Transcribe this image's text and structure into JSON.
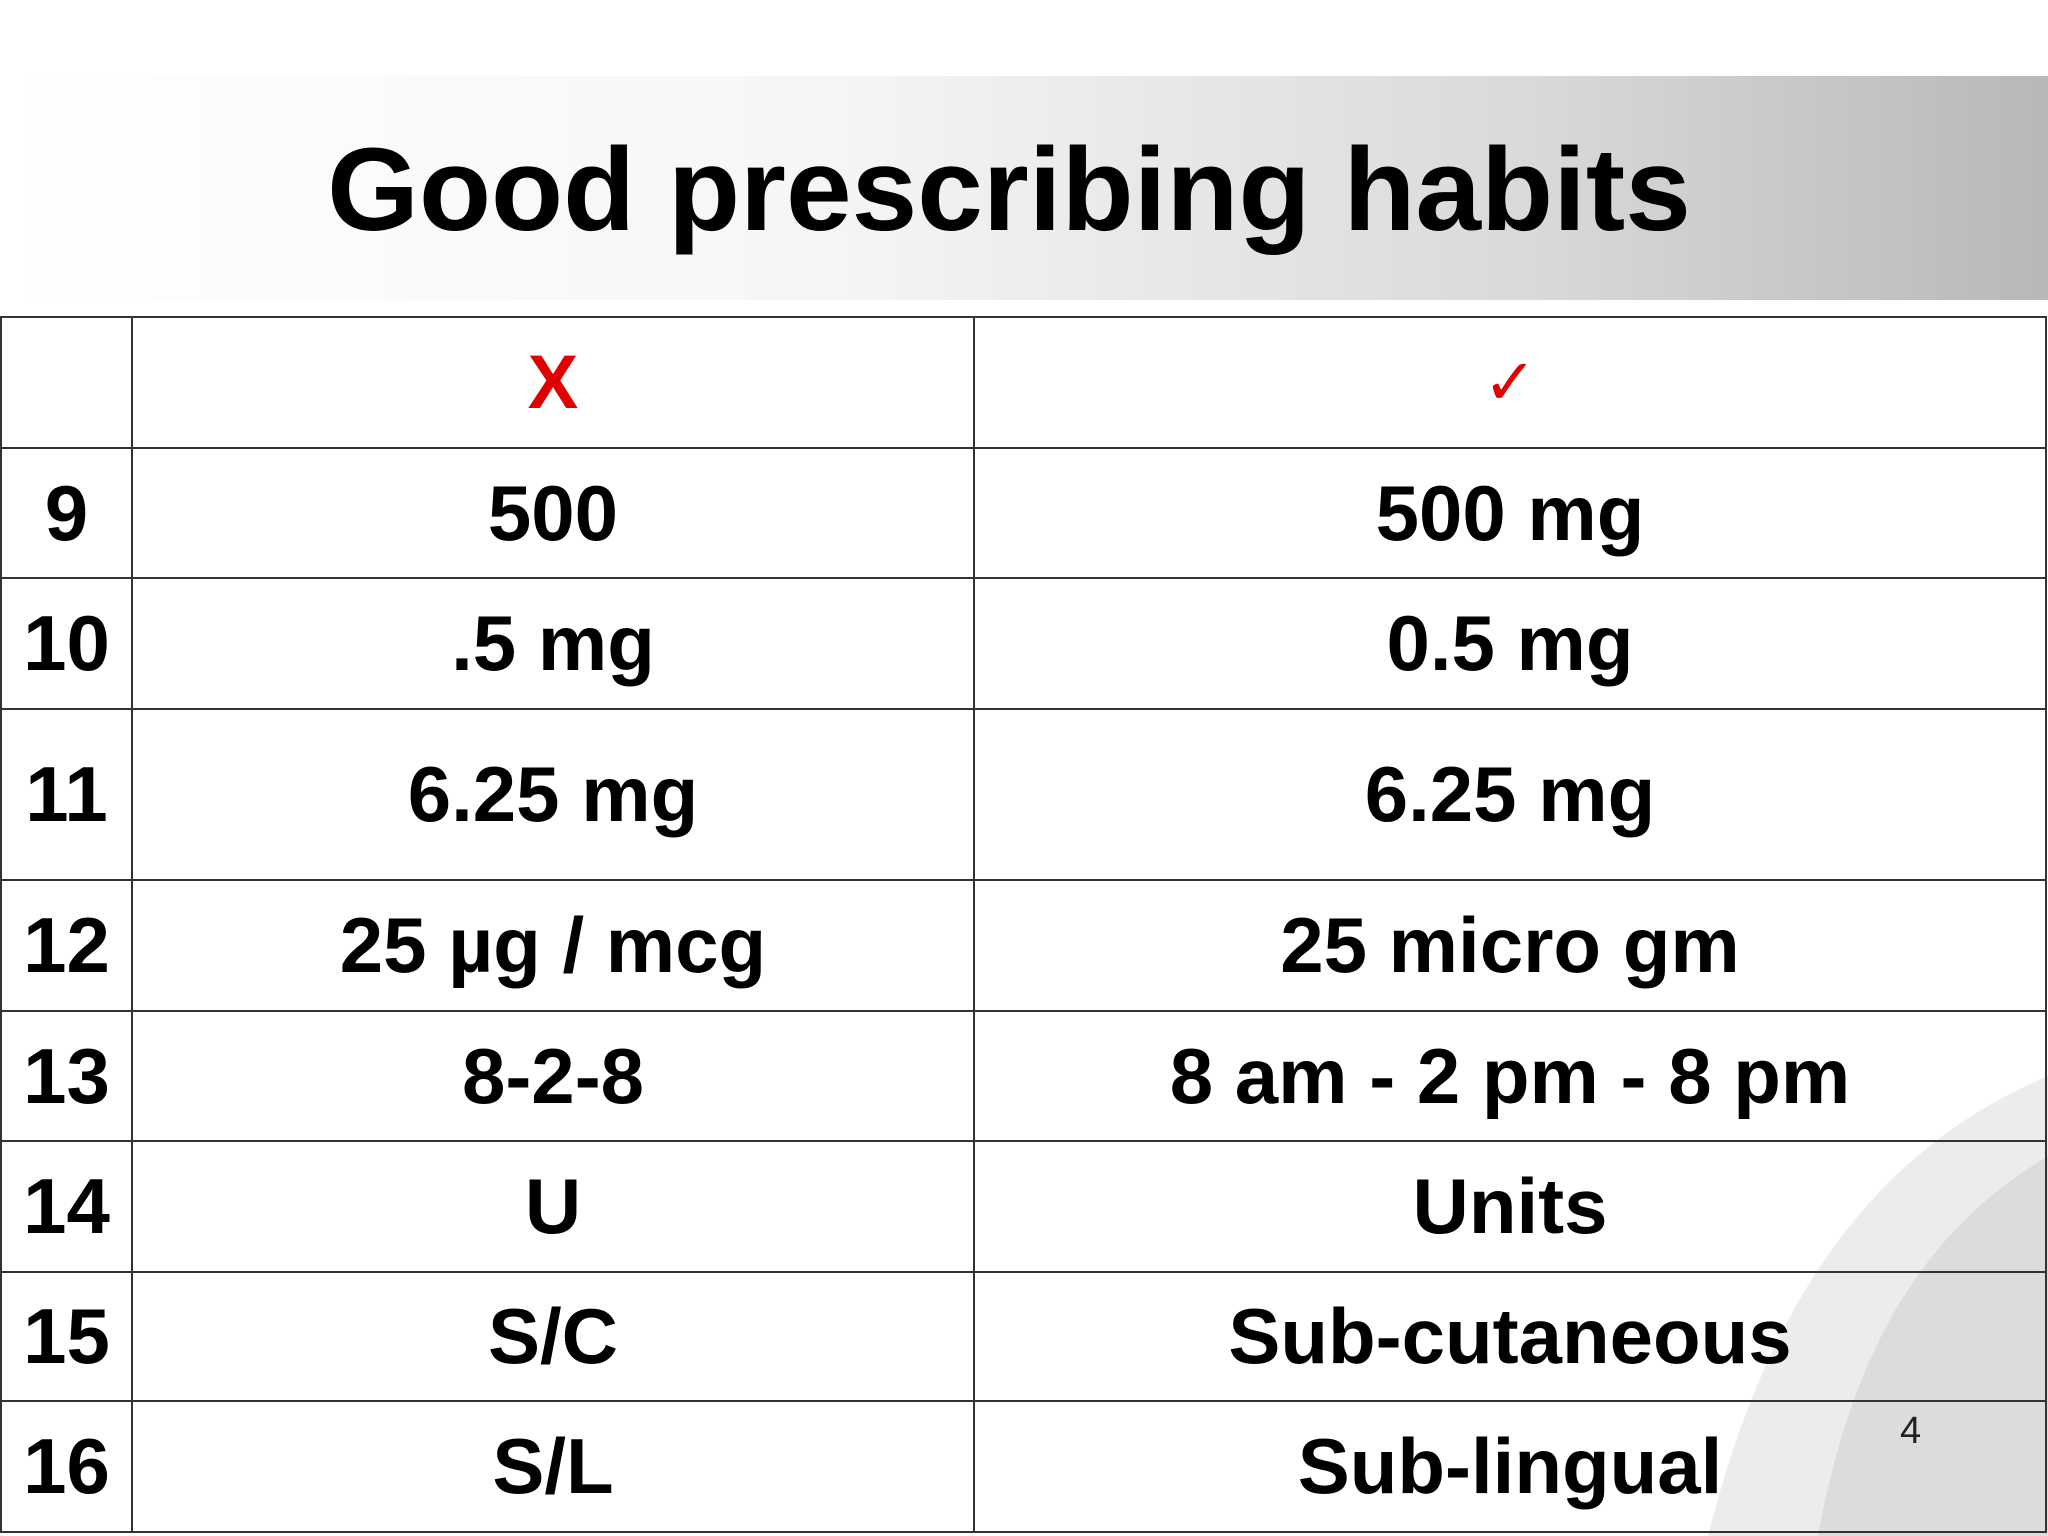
{
  "title": "Good prescribing habits",
  "table": {
    "header": {
      "wrong": "X",
      "right": "✓"
    },
    "rows": [
      [
        "9",
        "500",
        "500 mg"
      ],
      [
        "10",
        ".5 mg",
        "0.5 mg"
      ],
      [
        "11",
        "6.25 mg",
        "6.25 mg"
      ],
      [
        "12",
        "25 µg / mcg",
        "25 micro gm"
      ],
      [
        "13",
        "8-2-8",
        "8 am - 2 pm - 8 pm"
      ],
      [
        "14",
        "U",
        "Units"
      ],
      [
        "15",
        "S/C",
        "Sub-cutaneous"
      ],
      [
        "16",
        "S/L",
        "Sub-lingual"
      ]
    ]
  },
  "page_number": "4"
}
